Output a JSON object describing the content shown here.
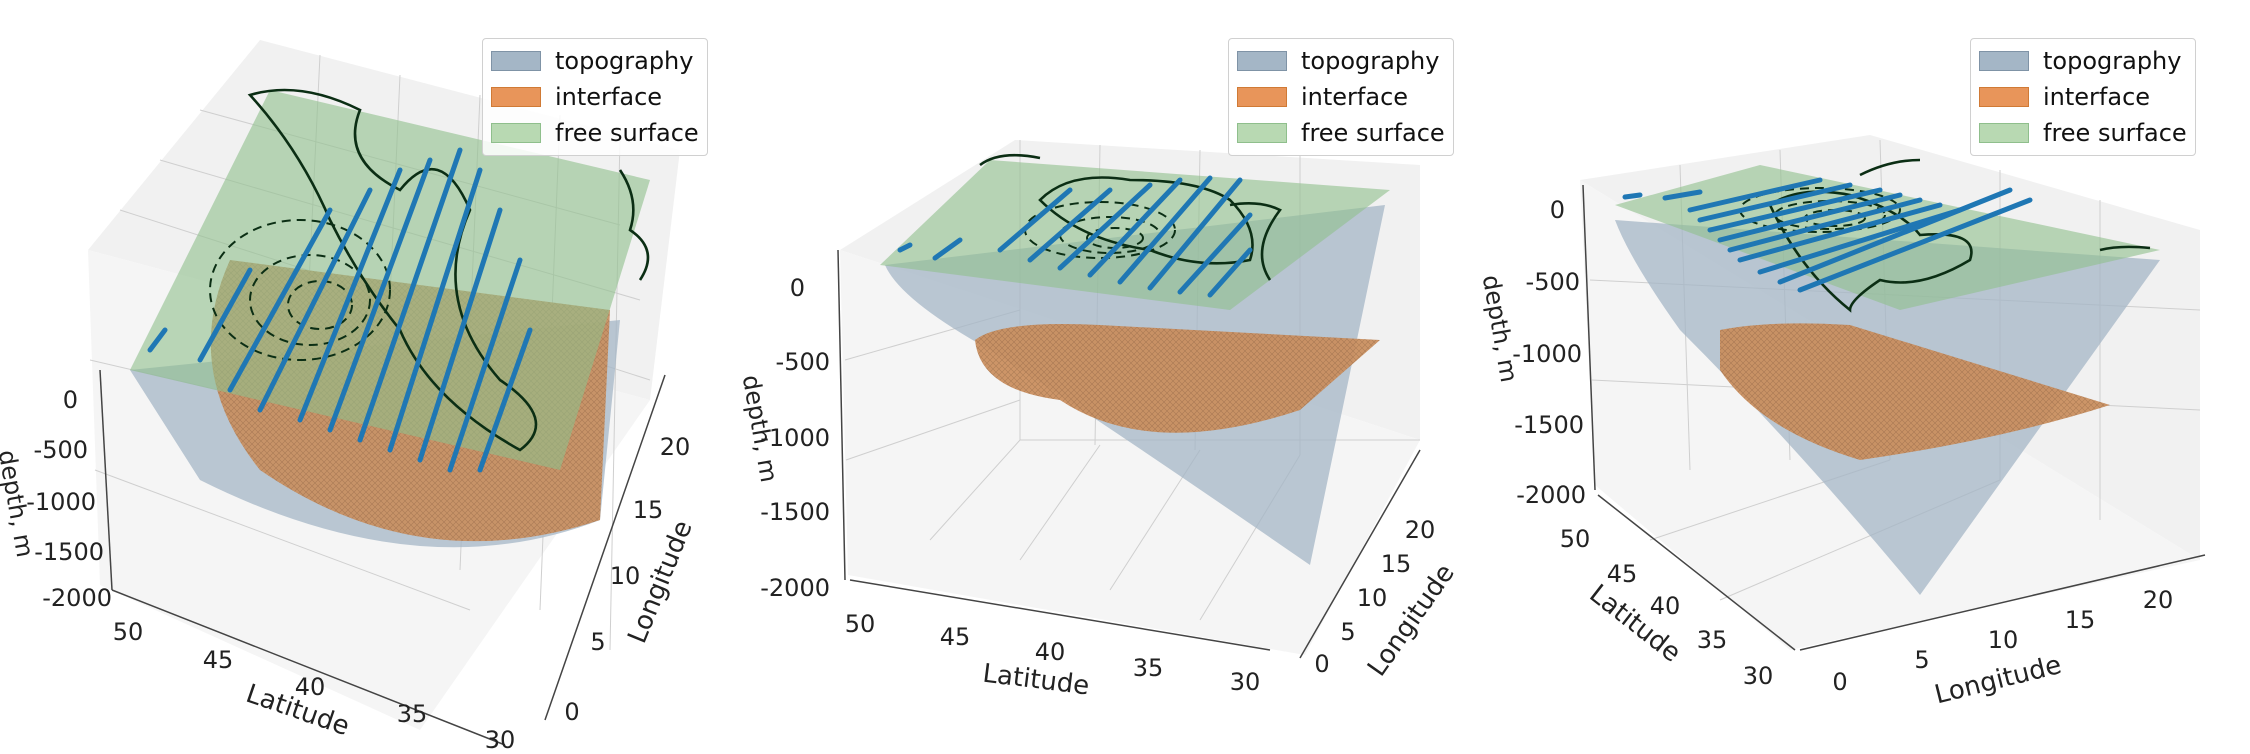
{
  "chart_data": [
    {
      "type": "surface3d",
      "view": "elevated",
      "legend": [
        "topography",
        "interface",
        "free surface"
      ],
      "legend_position": "top-right",
      "xlabel": "Latitude",
      "ylabel": "Longitude",
      "zlabel": "depth, m",
      "x_ticks": [
        50,
        45,
        40,
        35,
        30
      ],
      "y_ticks": [
        0,
        5,
        10,
        15,
        20
      ],
      "z_ticks": [
        0,
        -500,
        -1000,
        -1500,
        -2000
      ],
      "xlim": [
        30,
        50
      ],
      "ylim": [
        0,
        22
      ],
      "zlim": [
        -2000,
        0
      ],
      "grid": true
    },
    {
      "type": "surface3d",
      "view": "medium",
      "legend": [
        "topography",
        "interface",
        "free surface"
      ],
      "legend_position": "top-right",
      "xlabel": "Latitude",
      "ylabel": "Longitude",
      "zlabel": "depth, m",
      "x_ticks": [
        50,
        45,
        40,
        35,
        30
      ],
      "y_ticks": [
        0,
        5,
        10,
        15,
        20
      ],
      "z_ticks": [
        0,
        -500,
        -1000,
        -1500,
        -2000
      ],
      "xlim": [
        30,
        50
      ],
      "ylim": [
        0,
        22
      ],
      "zlim": [
        -2000,
        0
      ],
      "grid": true
    },
    {
      "type": "surface3d",
      "view": "rotated",
      "legend": [
        "topography",
        "interface",
        "free surface"
      ],
      "legend_position": "top-right",
      "xlabel": "Latitude",
      "ylabel": "Longitude",
      "zlabel": "depth, m",
      "x_ticks": [
        50,
        45,
        40,
        35,
        30
      ],
      "y_ticks": [
        0,
        5,
        10,
        15,
        20
      ],
      "z_ticks": [
        0,
        -500,
        -1000,
        -1500,
        -2000
      ],
      "xlim": [
        30,
        50
      ],
      "ylim": [
        0,
        22
      ],
      "zlim": [
        -2000,
        0
      ],
      "grid": true
    }
  ],
  "colors": {
    "topography": "#a4b6c6",
    "interface": "#e8955a",
    "free_surface": "#a6cfa0",
    "streamlines": "#1f77b4",
    "contours": "#0b2e14"
  }
}
